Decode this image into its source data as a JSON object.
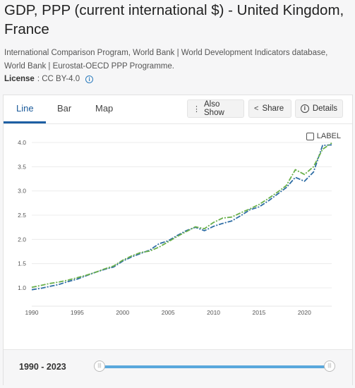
{
  "page": {
    "title": "GDP, PPP (current international $) - United Kingdom, France",
    "source": "International Comparison Program, World Bank | World Development Indicators database, World Bank | Eurostat-OECD PPP Programme.",
    "license_label": "License",
    "license_value": ": CC BY-4.0"
  },
  "tabs": [
    {
      "label": "Line",
      "active": true
    },
    {
      "label": "Bar",
      "active": false
    },
    {
      "label": "Map",
      "active": false
    }
  ],
  "actions": {
    "also_show": "Also Show",
    "share": "Share",
    "details": "Details"
  },
  "label_toggle": "LABEL",
  "range": {
    "label": "1990 - 2023",
    "handle_glyph": "|||"
  },
  "colors": {
    "uk": "#2e6da4",
    "france": "#6ab04c",
    "range": "#5aa8dc",
    "accent": "#1d5fa3"
  },
  "chart_data": {
    "type": "line",
    "title": "",
    "xlabel": "",
    "ylabel": "",
    "xlim": [
      1990,
      2023
    ],
    "ylim": [
      1.0,
      4.0
    ],
    "x_ticks": [
      1990,
      1995,
      2000,
      2005,
      2010,
      2015,
      2020
    ],
    "y_ticks": [
      1.0,
      1.5,
      2.0,
      2.5,
      3.0,
      3.5,
      4.0
    ],
    "x_tick_labels": [
      "1990",
      "1995",
      "2000",
      "2005",
      "2010",
      "2015",
      "2020"
    ],
    "y_tick_labels": [
      "1.0",
      "1.5",
      "2.0",
      "2.5",
      "3.0",
      "3.5",
      "4.0"
    ],
    "grid": "horizontal",
    "x": [
      1990,
      1991,
      1992,
      1993,
      1994,
      1995,
      1996,
      1997,
      1998,
      1999,
      2000,
      2001,
      2002,
      2003,
      2004,
      2005,
      2006,
      2007,
      2008,
      2009,
      2010,
      2011,
      2012,
      2013,
      2014,
      2015,
      2016,
      2017,
      2018,
      2019,
      2020,
      2021,
      2022,
      2023
    ],
    "series": [
      {
        "values": [
          0.96,
          0.99,
          1.03,
          1.07,
          1.13,
          1.18,
          1.25,
          1.32,
          1.38,
          1.43,
          1.55,
          1.64,
          1.71,
          1.78,
          1.91,
          1.97,
          2.08,
          2.18,
          2.25,
          2.18,
          2.27,
          2.33,
          2.38,
          2.49,
          2.61,
          2.67,
          2.79,
          2.93,
          3.07,
          3.28,
          3.2,
          3.39,
          3.94,
          3.95
        ],
        "style": "dashdot"
      },
      {
        "values": [
          1.01,
          1.05,
          1.09,
          1.12,
          1.16,
          1.21,
          1.26,
          1.32,
          1.39,
          1.45,
          1.57,
          1.66,
          1.73,
          1.76,
          1.84,
          1.95,
          2.06,
          2.16,
          2.26,
          2.22,
          2.35,
          2.44,
          2.46,
          2.55,
          2.63,
          2.72,
          2.84,
          2.97,
          3.11,
          3.44,
          3.34,
          3.5,
          3.86,
          3.99
        ],
        "style": "dashdot"
      }
    ]
  }
}
